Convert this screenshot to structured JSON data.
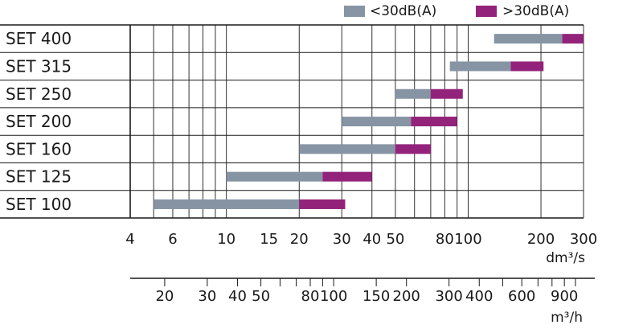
{
  "chart_data": {
    "type": "bar",
    "subtype": "horizontal-range",
    "x_scale": "log",
    "categories": [
      "SET 400",
      "SET 315",
      "SET 250",
      "SET 200",
      "SET 160",
      "SET 125",
      "SET 100"
    ],
    "legend": {
      "position": "top-right",
      "items": [
        {
          "label": "<30dB(A)",
          "color": "#8694a4"
        },
        {
          "label": ">30dB(A)",
          "color": "#93237a"
        }
      ]
    },
    "series": [
      {
        "name": "<30dB(A)",
        "ranges": [
          [
            128,
            245
          ],
          [
            84,
            150
          ],
          [
            50,
            70
          ],
          [
            30,
            58
          ],
          [
            20,
            50
          ],
          [
            10,
            25
          ],
          [
            5,
            20
          ]
        ]
      },
      {
        "name": ">30dB(A)",
        "ranges": [
          [
            245,
            300
          ],
          [
            150,
            205
          ],
          [
            70,
            95
          ],
          [
            58,
            90
          ],
          [
            50,
            70
          ],
          [
            25,
            40
          ],
          [
            20,
            31
          ]
        ]
      }
    ],
    "axis_primary": {
      "unit": "dm³/s",
      "range": [
        4,
        300
      ],
      "tick_labels": [
        {
          "v": 4,
          "t": "4"
        },
        {
          "v": 6,
          "t": "6"
        },
        {
          "v": 10,
          "t": "10"
        },
        {
          "v": 15,
          "t": "15"
        },
        {
          "v": 20,
          "t": "20"
        },
        {
          "v": 30,
          "t": "30"
        },
        {
          "v": 40,
          "t": "40"
        },
        {
          "v": 50,
          "t": "50"
        },
        {
          "v": 80,
          "t": "80"
        },
        {
          "v": 100,
          "t": "100"
        },
        {
          "v": 200,
          "t": "200"
        },
        {
          "v": 300,
          "t": "300"
        }
      ],
      "gridlines": [
        4,
        5,
        6,
        7,
        8,
        9,
        10,
        20,
        30,
        40,
        50,
        60,
        70,
        80,
        90,
        100,
        200,
        300
      ]
    },
    "axis_secondary": {
      "unit": "m³/h",
      "tick_labels": [
        {
          "v": 20,
          "t": "20"
        },
        {
          "v": 30,
          "t": "30"
        },
        {
          "v": 40,
          "t": "40"
        },
        {
          "v": 50,
          "t": "50"
        },
        {
          "v": 80,
          "t": "80"
        },
        {
          "v": 100,
          "t": "100"
        },
        {
          "v": 150,
          "t": "150"
        },
        {
          "v": 200,
          "t": "200"
        },
        {
          "v": 300,
          "t": "300"
        },
        {
          "v": 400,
          "t": "400"
        },
        {
          "v": 600,
          "t": "600"
        },
        {
          "v": 900,
          "t": "900"
        }
      ],
      "ticks": [
        20,
        30,
        40,
        50,
        60,
        70,
        80,
        90,
        100,
        150,
        200,
        300,
        400,
        500,
        600,
        700,
        800,
        900,
        1000
      ]
    },
    "grid": true
  }
}
